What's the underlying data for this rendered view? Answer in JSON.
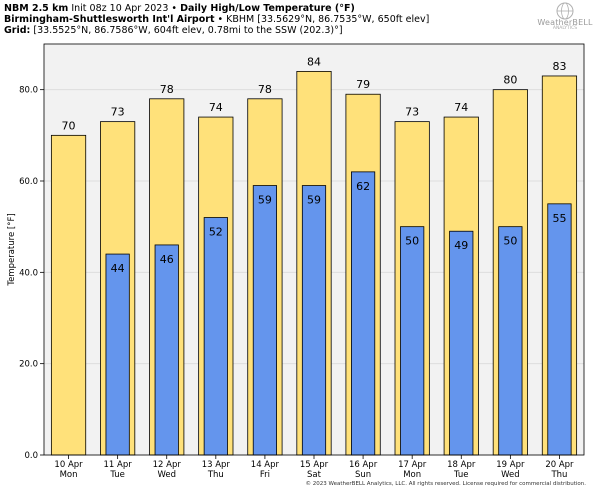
{
  "header": {
    "model": "NBM 2.5 km",
    "init": "Init 08z 10 Apr 2023",
    "bullet": "•",
    "product": "Daily High/Low Temperature (°F)",
    "station": "Birmingham-Shuttlesworth Int'l Airport",
    "station_info": "• KBHM [33.5629°N, 86.7535°W, 650ft elev]",
    "grid_label": "Grid:",
    "grid_info": "[33.5525°N, 86.7586°W, 604ft elev, 0.78mi to the SSW (202.3)°]"
  },
  "logo": {
    "name": "WeatherBELL",
    "sub": "ANALYTICS"
  },
  "footer": "© 2023 WeatherBELL Analytics, LLC. All rights reserved. License required for commercial distribution.",
  "chart_data": {
    "type": "bar",
    "title": "Daily High/Low Temperature (°F)",
    "ylabel": "Temperature [°F]",
    "xlabel": "",
    "ylim": [
      0,
      90
    ],
    "yticks": [
      0,
      20,
      40,
      60,
      80
    ],
    "ytick_labels": [
      "0.0",
      "20.0",
      "40.0",
      "60.0",
      "80.0"
    ],
    "grid": true,
    "categories": [
      {
        "date": "10 Apr",
        "day": "Mon"
      },
      {
        "date": "11 Apr",
        "day": "Tue"
      },
      {
        "date": "12 Apr",
        "day": "Wed"
      },
      {
        "date": "13 Apr",
        "day": "Thu"
      },
      {
        "date": "14 Apr",
        "day": "Fri"
      },
      {
        "date": "15 Apr",
        "day": "Sat"
      },
      {
        "date": "16 Apr",
        "day": "Sun"
      },
      {
        "date": "17 Apr",
        "day": "Mon"
      },
      {
        "date": "18 Apr",
        "day": "Tue"
      },
      {
        "date": "19 Apr",
        "day": "Wed"
      },
      {
        "date": "20 Apr",
        "day": "Thu"
      }
    ],
    "series": [
      {
        "color": "#ffe17a",
        "values": [
          70,
          73,
          78,
          74,
          78,
          84,
          79,
          73,
          74,
          80,
          83
        ]
      },
      {
        "color": "#6495ed",
        "values": [
          null,
          44,
          46,
          52,
          59,
          59,
          62,
          50,
          49,
          50,
          55
        ]
      }
    ],
    "colors": {
      "plot_bg": "#f2f2f2",
      "grid": "#d9d9d9",
      "edge": "#000000"
    }
  }
}
